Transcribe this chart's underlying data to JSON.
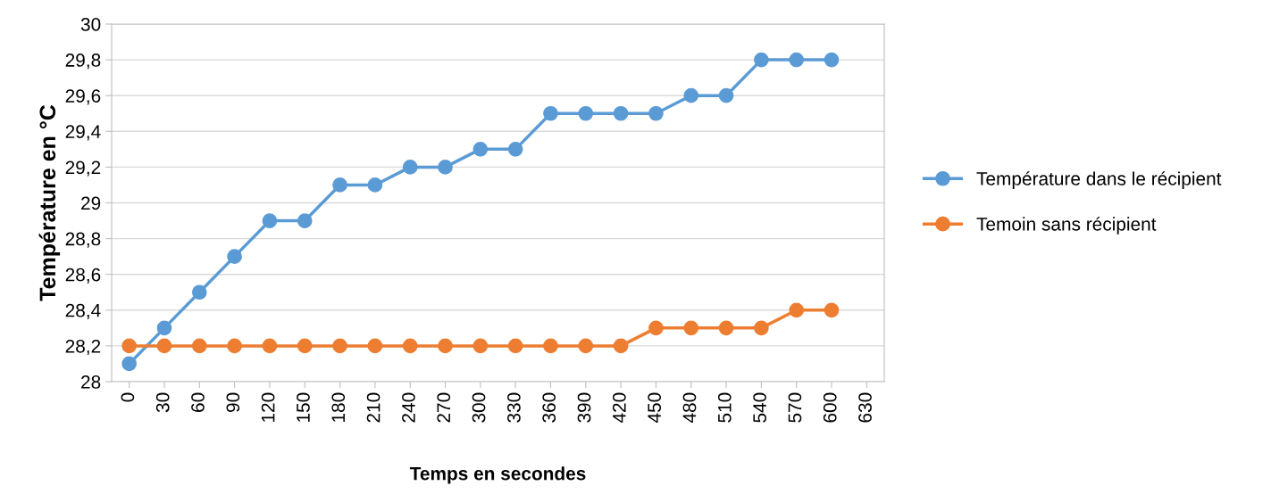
{
  "chart_data": {
    "type": "line",
    "xlabel": "Temps en secondes",
    "ylabel": "Température en °C",
    "categories": [
      "0",
      "30",
      "60",
      "90",
      "120",
      "150",
      "180",
      "210",
      "240",
      "270",
      "300",
      "330",
      "360",
      "390",
      "420",
      "450",
      "480",
      "510",
      "540",
      "570",
      "600",
      "630"
    ],
    "series": [
      {
        "name": "Température dans le récipient",
        "color": "#5b9bd5",
        "values": [
          28.1,
          28.3,
          28.5,
          28.7,
          28.9,
          28.9,
          29.1,
          29.1,
          29.2,
          29.2,
          29.3,
          29.3,
          29.5,
          29.5,
          29.5,
          29.5,
          29.6,
          29.6,
          29.8,
          29.8,
          29.8,
          null
        ]
      },
      {
        "name": "Temoin sans récipient",
        "color": "#ed7d31",
        "values": [
          28.2,
          28.2,
          28.2,
          28.2,
          28.2,
          28.2,
          28.2,
          28.2,
          28.2,
          28.2,
          28.2,
          28.2,
          28.2,
          28.2,
          28.2,
          28.3,
          28.3,
          28.3,
          28.3,
          28.4,
          28.4,
          null
        ]
      }
    ],
    "ylim": [
      28,
      30
    ],
    "yticks": [
      {
        "value": 28,
        "label": "28"
      },
      {
        "value": 28.2,
        "label": "28,2"
      },
      {
        "value": 28.4,
        "label": "28,4"
      },
      {
        "value": 28.6,
        "label": "28,6"
      },
      {
        "value": 28.8,
        "label": "28,8"
      },
      {
        "value": 29,
        "label": "29"
      },
      {
        "value": 29.2,
        "label": "29,2"
      },
      {
        "value": 29.4,
        "label": "29,4"
      },
      {
        "value": 29.6,
        "label": "29,6"
      },
      {
        "value": 29.8,
        "label": "29,8"
      },
      {
        "value": 30,
        "label": "30"
      }
    ],
    "grid": "y",
    "legend": "right",
    "marker": "circle",
    "line_style": "solid"
  }
}
